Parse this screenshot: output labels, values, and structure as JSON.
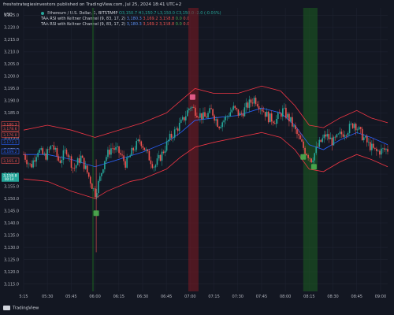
{
  "header": {
    "publisher_text": "freshstrategiesinvestors published on TradingView.com, Jul 25, 2024 18:41 UTC+2"
  },
  "currency_label": "USD",
  "legend": {
    "symbol_label": "Ethereum / U.S. Dollar, 1, BITSTAMP",
    "ohlc": "O3,150.7 H3,150.7 L3,150.0 C3,150.0 -2.0 (-0.06%)",
    "indicator1_label": "TAA RSI with Keltner Channel (9, 83, 17, 2)",
    "indicator1_v1": "3,180.3",
    "indicator1_v2": "3,169.2",
    "indicator1_v3": "3,158.8",
    "indicator1_v4": "0.0",
    "indicator1_v5": "0.0",
    "indicator2_label": "TAA RSI with Keltner Channel (9, 83, 17, 2)",
    "indicator2_v1": "3,180.3",
    "indicator2_v2": "3,169.2",
    "indicator2_v3": "3,158.8",
    "indicator2_v4": "0.0",
    "indicator2_v5": "0.0"
  },
  "footer": {
    "brand": "TradingView"
  },
  "colors": {
    "background": "#131722",
    "grid": "#1e2230",
    "up": "#26a69a",
    "down": "#ef5350",
    "mid_band": "#2962ff",
    "outer_band": "#f23645",
    "green_zone": "#1b5e20",
    "red_zone": "#801922",
    "signal_buy": "#4caf50",
    "signal_sell": "#f06292"
  },
  "chart_data": {
    "type": "candlestick",
    "x_ticks": [
      "5:15",
      "05:30",
      "05:45",
      "06:00",
      "06:15",
      "06:30",
      "06:45",
      "07:00",
      "07:15",
      "07:30",
      "07:45",
      "08:00",
      "08:15",
      "08:30",
      "08:45",
      "09:00"
    ],
    "y_ticks": [
      "3,225.0",
      "3,220.0",
      "3,215.0",
      "3,210.0",
      "3,205.0",
      "3,200.0",
      "3,195.0",
      "3,190.0",
      "3,185.0",
      "3,180.0",
      "3,175.0",
      "3,170.0",
      "3,165.0",
      "3,160.0",
      "3,155.0",
      "3,150.0",
      "3,145.0",
      "3,140.0",
      "3,135.0",
      "3,130.0",
      "3,125.0",
      "3,120.0",
      "3,115.0"
    ],
    "ylim": [
      3112,
      3228
    ],
    "price_tags": [
      {
        "text": "3,180.3",
        "color": "#ef5350",
        "y": 3180.3
      },
      {
        "text": "3,178.6",
        "color": "#ef5350",
        "y": 3178.6
      },
      {
        "text": "3,176.0",
        "color": "#ef5350",
        "y": 3176.0
      },
      {
        "text": "3,173.1",
        "color": "#2962ff",
        "y": 3173.1
      },
      {
        "text": "3,169.2",
        "color": "#2962ff",
        "y": 3169.2
      },
      {
        "text": "3,165.4",
        "color": "#ef5350",
        "y": 3165.4
      }
    ],
    "current_price": {
      "text": "3,158.8",
      "sub": "00:14",
      "y": 3158.8
    },
    "time_range": [
      0,
      15.3
    ],
    "zones": [
      {
        "kind": "green",
        "x0": 2.88,
        "x1": 2.95
      },
      {
        "kind": "red",
        "x0": 6.92,
        "x1": 7.35
      },
      {
        "kind": "green",
        "x0": 11.75,
        "x1": 12.35
      }
    ],
    "signals": [
      {
        "kind": "sell",
        "x": 7.1,
        "y": 3191.5
      },
      {
        "kind": "buy",
        "x": 3.05,
        "y": 3144.0
      },
      {
        "kind": "buy",
        "x": 11.75,
        "y": 3167.0
      },
      {
        "kind": "buy",
        "x": 12.2,
        "y": 3163.0
      }
    ],
    "close_path": [
      [
        0,
        3168
      ],
      [
        0.3,
        3163
      ],
      [
        0.6,
        3170
      ],
      [
        0.9,
        3167
      ],
      [
        1.2,
        3172
      ],
      [
        1.5,
        3165
      ],
      [
        1.8,
        3170
      ],
      [
        2.1,
        3162
      ],
      [
        2.4,
        3167
      ],
      [
        2.7,
        3160
      ],
      [
        3.0,
        3152
      ],
      [
        3.2,
        3158
      ],
      [
        3.4,
        3166
      ],
      [
        3.7,
        3171
      ],
      [
        4.0,
        3169
      ],
      [
        4.3,
        3164
      ],
      [
        4.6,
        3170
      ],
      [
        4.9,
        3174
      ],
      [
        5.2,
        3168
      ],
      [
        5.5,
        3163
      ],
      [
        5.8,
        3168
      ],
      [
        6.1,
        3174
      ],
      [
        6.4,
        3178
      ],
      [
        6.7,
        3182
      ],
      [
        7.0,
        3188
      ],
      [
        7.3,
        3185
      ],
      [
        7.6,
        3183
      ],
      [
        7.9,
        3186
      ],
      [
        8.2,
        3180
      ],
      [
        8.5,
        3183
      ],
      [
        8.8,
        3187
      ],
      [
        9.1,
        3184
      ],
      [
        9.4,
        3188
      ],
      [
        9.7,
        3191
      ],
      [
        10.0,
        3187
      ],
      [
        10.3,
        3183
      ],
      [
        10.6,
        3182
      ],
      [
        10.9,
        3186
      ],
      [
        11.2,
        3182
      ],
      [
        11.5,
        3176
      ],
      [
        11.8,
        3170
      ],
      [
        12.1,
        3166
      ],
      [
        12.4,
        3172
      ],
      [
        12.7,
        3176
      ],
      [
        13.0,
        3173
      ],
      [
        13.3,
        3176
      ],
      [
        13.6,
        3178
      ],
      [
        13.9,
        3181
      ],
      [
        14.2,
        3176
      ],
      [
        14.5,
        3172
      ],
      [
        14.8,
        3169
      ],
      [
        15.2,
        3170
      ]
    ],
    "upper_band_path": [
      [
        0,
        3178
      ],
      [
        1,
        3180
      ],
      [
        2,
        3178
      ],
      [
        3,
        3175
      ],
      [
        4,
        3178
      ],
      [
        5,
        3181
      ],
      [
        6,
        3185
      ],
      [
        6.6,
        3190
      ],
      [
        7.2,
        3195
      ],
      [
        8,
        3193
      ],
      [
        9,
        3193
      ],
      [
        10,
        3196
      ],
      [
        10.8,
        3194
      ],
      [
        11.4,
        3188
      ],
      [
        12,
        3180
      ],
      [
        12.6,
        3179
      ],
      [
        13.3,
        3183
      ],
      [
        14,
        3186
      ],
      [
        14.6,
        3183
      ],
      [
        15.3,
        3181
      ]
    ],
    "middle_band_path": [
      [
        0,
        3168
      ],
      [
        1,
        3168
      ],
      [
        2,
        3166
      ],
      [
        3,
        3163
      ],
      [
        4,
        3166
      ],
      [
        5,
        3169
      ],
      [
        6,
        3173
      ],
      [
        6.6,
        3177
      ],
      [
        7.2,
        3182
      ],
      [
        8,
        3183
      ],
      [
        9,
        3184
      ],
      [
        10,
        3187
      ],
      [
        10.8,
        3185
      ],
      [
        11.4,
        3180
      ],
      [
        12,
        3172
      ],
      [
        12.6,
        3170
      ],
      [
        13.3,
        3174
      ],
      [
        14,
        3177
      ],
      [
        14.6,
        3175
      ],
      [
        15.3,
        3172
      ]
    ],
    "lower_band_path": [
      [
        0,
        3158
      ],
      [
        1,
        3157
      ],
      [
        2,
        3153
      ],
      [
        3,
        3150
      ],
      [
        3.5,
        3153
      ],
      [
        4.5,
        3157
      ],
      [
        5,
        3158
      ],
      [
        6,
        3162
      ],
      [
        6.6,
        3167
      ],
      [
        7.2,
        3171
      ],
      [
        8,
        3173
      ],
      [
        9,
        3175
      ],
      [
        10,
        3177
      ],
      [
        10.8,
        3175
      ],
      [
        11.4,
        3170
      ],
      [
        12,
        3162
      ],
      [
        12.6,
        3161
      ],
      [
        13.3,
        3165
      ],
      [
        14,
        3168
      ],
      [
        14.6,
        3166
      ],
      [
        15.3,
        3163
      ]
    ]
  }
}
